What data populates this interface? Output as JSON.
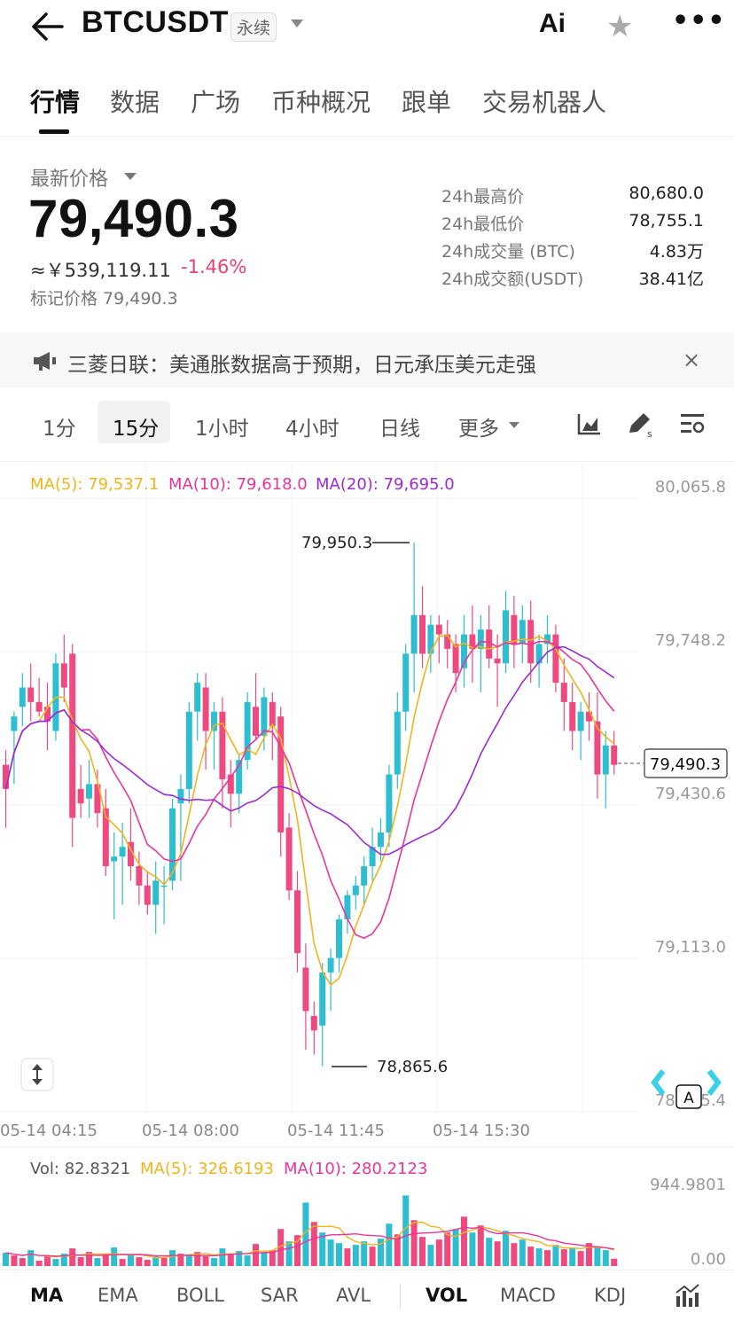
{
  "header": {
    "pair": "BTCUSDT",
    "contract_type": "永续",
    "ai_label": "Ai"
  },
  "tabs": [
    {
      "label": "行情",
      "active": true
    },
    {
      "label": "数据"
    },
    {
      "label": "广场"
    },
    {
      "label": "币种概况"
    },
    {
      "label": "跟单"
    },
    {
      "label": "交易机器人"
    }
  ],
  "price": {
    "label": "最新价格",
    "last": "79,490.3",
    "cny": "≈￥539,119.11",
    "change": "-1.46%",
    "mark": "标记价格 79,490.3"
  },
  "stats": [
    {
      "label": "24h最高价",
      "value": "80,680.0"
    },
    {
      "label": "24h最低价",
      "value": "78,755.1"
    },
    {
      "label": "24h成交量 (BTC)",
      "value": "4.83万"
    },
    {
      "label": "24h成交额(USDT)",
      "value": "38.41亿"
    }
  ],
  "news": {
    "text": "三菱日联：美通胀数据高于预期，日元承压美元走强",
    "close": "×"
  },
  "intervals": [
    {
      "label": "1分"
    },
    {
      "label": "15分",
      "active": true
    },
    {
      "label": "1小时"
    },
    {
      "label": "4小时"
    },
    {
      "label": "日线"
    },
    {
      "label": "更多"
    }
  ],
  "ma_legend": {
    "ma5": "MA(5): 79,537.1",
    "ma10": "MA(10): 79,618.0",
    "ma20": "MA(20): 79,695.0"
  },
  "colors": {
    "up": "#2ebdd1",
    "down": "#ef4a7f",
    "ma5": "#f0b41d",
    "ma10": "#e8359a",
    "ma20": "#9c2bd3"
  },
  "vol_legend": {
    "vol": "Vol: 82.8321",
    "ma5": "MA(5): 326.6193",
    "ma10": "MA(10): 280.2123"
  },
  "indicators": [
    {
      "label": "MA",
      "active": true
    },
    {
      "label": "EMA"
    },
    {
      "label": "BOLL"
    },
    {
      "label": "SAR"
    },
    {
      "label": "AVL"
    },
    {
      "label": "VOL",
      "active": true
    },
    {
      "label": "MACD"
    },
    {
      "label": "KDJ"
    }
  ],
  "chart_data": {
    "type": "candlestick",
    "y_ticks": [
      "80,065.8",
      "79,748.2",
      "79,430.6",
      "79,113.0",
      "78,795.4"
    ],
    "ylim": [
      78795.4,
      80065.8
    ],
    "x_ticks": [
      "05-14 04:15",
      "05-14 08:00",
      "05-14 11:45",
      "05-14 15:30"
    ],
    "current_price_label": "79,490.3",
    "high_marker": "79,950.3",
    "low_marker": "78,865.6",
    "vol_ticks": [
      "944.9801",
      "0.00"
    ],
    "vol_max": 944.9801,
    "candles": [
      [
        79490,
        79520,
        79360,
        79440
      ],
      [
        79560,
        79600,
        79450,
        79590
      ],
      [
        79610,
        79680,
        79570,
        79650
      ],
      [
        79650,
        79700,
        79580,
        79620
      ],
      [
        79620,
        79670,
        79590,
        79600
      ],
      [
        79610,
        79660,
        79520,
        79580
      ],
      [
        79560,
        79720,
        79540,
        79700
      ],
      [
        79700,
        79760,
        79620,
        79650
      ],
      [
        79720,
        79740,
        79320,
        79380
      ],
      [
        79440,
        79490,
        79380,
        79410
      ],
      [
        79420,
        79500,
        79380,
        79450
      ],
      [
        79450,
        79480,
        79360,
        79390
      ],
      [
        79400,
        79440,
        79260,
        79280
      ],
      [
        79290,
        79350,
        79170,
        79300
      ],
      [
        79300,
        79370,
        79200,
        79320
      ],
      [
        79330,
        79400,
        79250,
        79280
      ],
      [
        79280,
        79310,
        79200,
        79240
      ],
      [
        79240,
        79270,
        79180,
        79200
      ],
      [
        79200,
        79290,
        79140,
        79250
      ],
      [
        79240,
        79280,
        79160,
        79240
      ],
      [
        79250,
        79420,
        79230,
        79400
      ],
      [
        79410,
        79470,
        79250,
        79440
      ],
      [
        79440,
        79620,
        79410,
        79600
      ],
      [
        79600,
        79680,
        79540,
        79660
      ],
      [
        79650,
        79680,
        79480,
        79560
      ],
      [
        79560,
        79620,
        79480,
        79600
      ],
      [
        79600,
        79630,
        79400,
        79460
      ],
      [
        79470,
        79500,
        79360,
        79430
      ],
      [
        79430,
        79510,
        79390,
        79500
      ],
      [
        79500,
        79640,
        79480,
        79620
      ],
      [
        79610,
        79680,
        79540,
        79550
      ],
      [
        79550,
        79650,
        79520,
        79630
      ],
      [
        79620,
        79640,
        79500,
        79570
      ],
      [
        79590,
        79610,
        79300,
        79350
      ],
      [
        79360,
        79390,
        79210,
        79230
      ],
      [
        79230,
        79270,
        79060,
        79100
      ],
      [
        79070,
        79120,
        78900,
        78980
      ],
      [
        78970,
        79000,
        78890,
        78940
      ],
      [
        78950,
        79080,
        78865.6,
        79060
      ],
      [
        79060,
        79110,
        78980,
        79090
      ],
      [
        79090,
        79180,
        79060,
        79170
      ],
      [
        79170,
        79230,
        79140,
        79220
      ],
      [
        79220,
        79260,
        79190,
        79240
      ],
      [
        79240,
        79300,
        79200,
        79280
      ],
      [
        79280,
        79360,
        79250,
        79320
      ],
      [
        79320,
        79380,
        79290,
        79350
      ],
      [
        79350,
        79490,
        79320,
        79470
      ],
      [
        79470,
        79640,
        79440,
        79600
      ],
      [
        79600,
        79740,
        79560,
        79720
      ],
      [
        79720,
        79950.3,
        79640,
        79800
      ],
      [
        79800,
        79860,
        79690,
        79720
      ],
      [
        79720,
        79800,
        79680,
        79780
      ],
      [
        79780,
        79800,
        79700,
        79760
      ],
      [
        79760,
        79790,
        79690,
        79730
      ],
      [
        79740,
        79760,
        79640,
        79680
      ],
      [
        79690,
        79800,
        79650,
        79760
      ],
      [
        79760,
        79820,
        79660,
        79730
      ],
      [
        79730,
        79800,
        79640,
        79770
      ],
      [
        79770,
        79820,
        79690,
        79710
      ],
      [
        79710,
        79760,
        79610,
        79700
      ],
      [
        79700,
        79850,
        79680,
        79810
      ],
      [
        79800,
        79840,
        79690,
        79740
      ],
      [
        79740,
        79820,
        79700,
        79790
      ],
      [
        79790,
        79830,
        79660,
        79700
      ],
      [
        79700,
        79760,
        79650,
        79740
      ],
      [
        79740,
        79800,
        79700,
        79760
      ],
      [
        79760,
        79780,
        79640,
        79660
      ],
      [
        79660,
        79710,
        79560,
        79620
      ],
      [
        79620,
        79660,
        79520,
        79560
      ],
      [
        79560,
        79620,
        79500,
        79600
      ],
      [
        79600,
        79640,
        79540,
        79580
      ],
      [
        79580,
        79640,
        79420,
        79470
      ],
      [
        79470,
        79560,
        79400,
        79530
      ],
      [
        79530,
        79560,
        79470,
        79490
      ]
    ],
    "volumes": [
      [
        150,
        1
      ],
      [
        120,
        0
      ],
      [
        90,
        0
      ],
      [
        180,
        1
      ],
      [
        60,
        0
      ],
      [
        110,
        0
      ],
      [
        80,
        1
      ],
      [
        140,
        1
      ],
      [
        200,
        0
      ],
      [
        100,
        0
      ],
      [
        160,
        0
      ],
      [
        90,
        1
      ],
      [
        130,
        0
      ],
      [
        210,
        1
      ],
      [
        80,
        0
      ],
      [
        120,
        1
      ],
      [
        100,
        0
      ],
      [
        70,
        0
      ],
      [
        110,
        1
      ],
      [
        90,
        0
      ],
      [
        180,
        1
      ],
      [
        140,
        0
      ],
      [
        120,
        1
      ],
      [
        160,
        0
      ],
      [
        110,
        0
      ],
      [
        90,
        1
      ],
      [
        200,
        1
      ],
      [
        130,
        0
      ],
      [
        170,
        1
      ],
      [
        120,
        1
      ],
      [
        250,
        0
      ],
      [
        160,
        1
      ],
      [
        180,
        0
      ],
      [
        420,
        0
      ],
      [
        280,
        1
      ],
      [
        350,
        0
      ],
      [
        720,
        1
      ],
      [
        500,
        0
      ],
      [
        380,
        1
      ],
      [
        300,
        1
      ],
      [
        260,
        1
      ],
      [
        200,
        0
      ],
      [
        240,
        1
      ],
      [
        280,
        1
      ],
      [
        220,
        0
      ],
      [
        310,
        1
      ],
      [
        480,
        1
      ],
      [
        360,
        0
      ],
      [
        800,
        1
      ],
      [
        520,
        0
      ],
      [
        330,
        0
      ],
      [
        240,
        1
      ],
      [
        300,
        0
      ],
      [
        380,
        0
      ],
      [
        420,
        1
      ],
      [
        560,
        0
      ],
      [
        380,
        1
      ],
      [
        460,
        0
      ],
      [
        320,
        1
      ],
      [
        280,
        0
      ],
      [
        400,
        1
      ],
      [
        260,
        0
      ],
      [
        300,
        1
      ],
      [
        220,
        0
      ],
      [
        200,
        1
      ],
      [
        180,
        0
      ],
      [
        240,
        1
      ],
      [
        190,
        0
      ],
      [
        210,
        1
      ],
      [
        170,
        0
      ],
      [
        260,
        0
      ],
      [
        220,
        1
      ],
      [
        180,
        1
      ],
      [
        82.8,
        0
      ]
    ]
  }
}
